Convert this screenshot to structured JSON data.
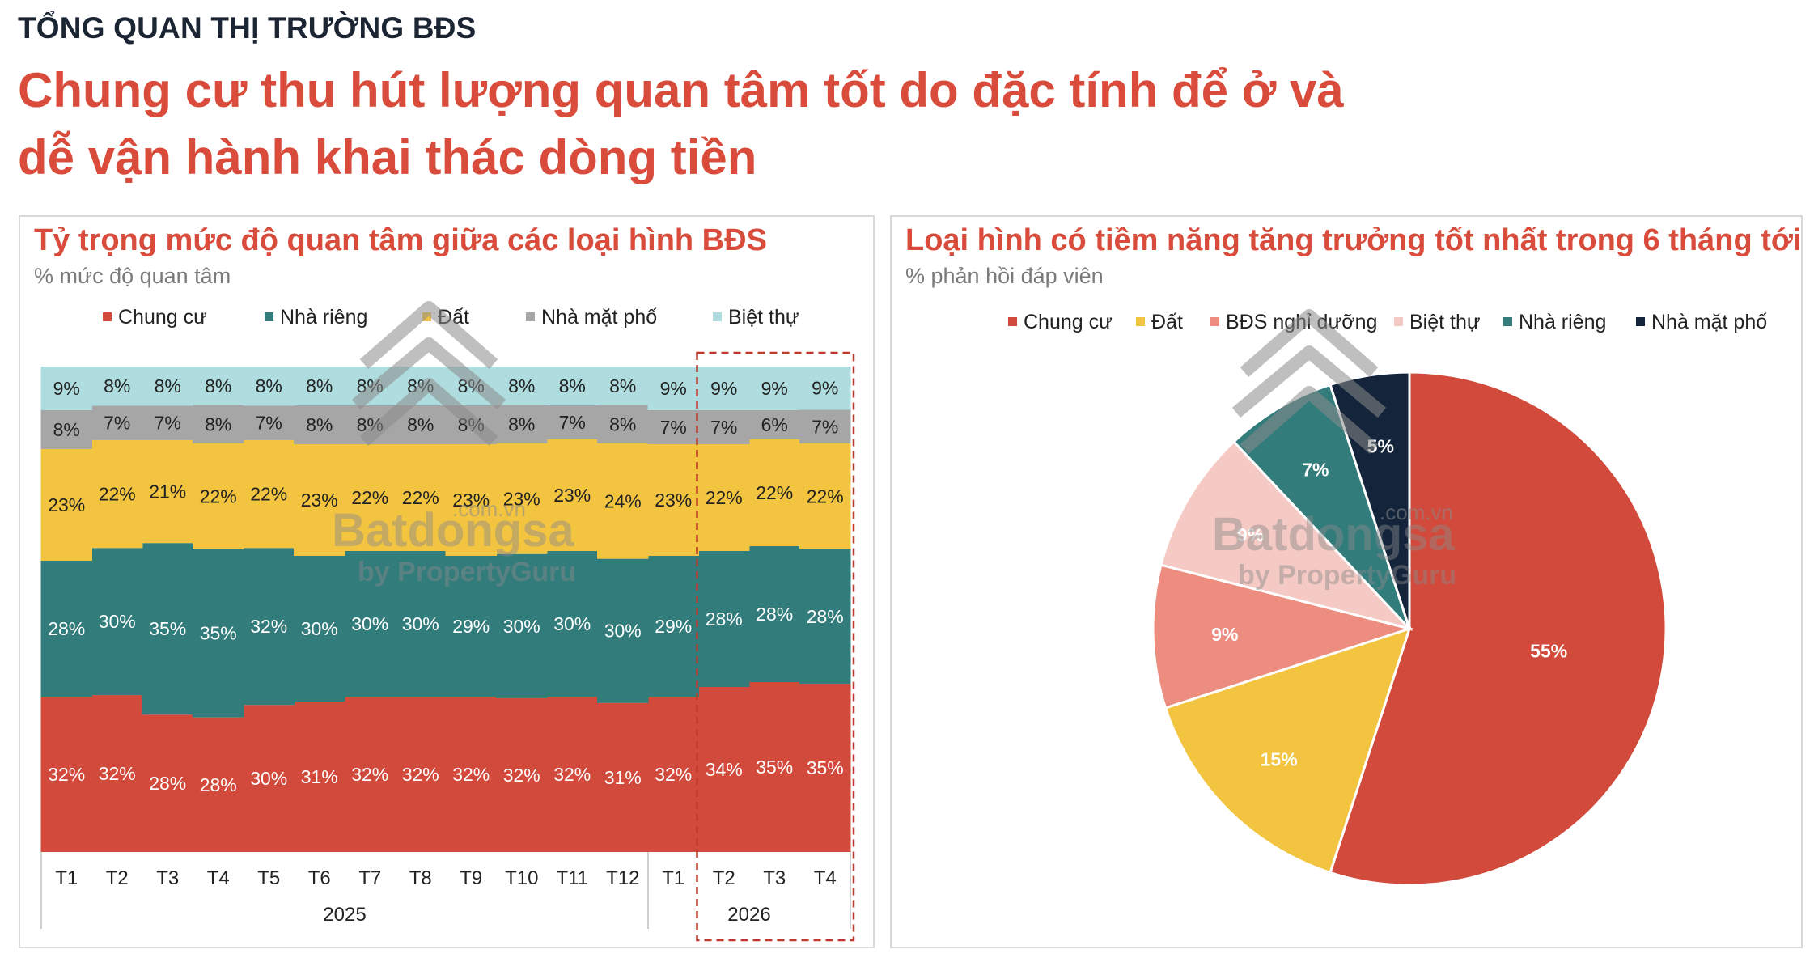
{
  "header": {
    "kicker": "TỔNG QUAN THỊ TRƯỜNG BĐS",
    "headline_line1": "Chung cư thu hút lượng quan tâm tốt do đặc tính để ở và",
    "headline_line2": "dễ vận hành khai thác dòng tiền"
  },
  "colors": {
    "accent_red": "#d94b3a",
    "chung_cu": "#d14a3b",
    "nha_rieng": "#337c7c",
    "dat": "#f2c440",
    "nha_mat_pho": "#a6a6a6",
    "biet_thu": "#afdcdf",
    "bds_nghi_duong": "#ec8d80",
    "biet_thu_pie": "#f5c9c4",
    "nha_mat_pho_pie": "#13243b"
  },
  "chart_data": [
    {
      "type": "bar",
      "stacked": true,
      "normalized": true,
      "title": "Tỷ trọng mức độ quan tâm giữa các loại hình BĐS",
      "subtitle": "% mức độ quan tâm",
      "categories": [
        "T1",
        "T2",
        "T3",
        "T4",
        "T5",
        "T6",
        "T7",
        "T8",
        "T9",
        "T10",
        "T11",
        "T12",
        "T1",
        "T2",
        "T3",
        "T4"
      ],
      "groups": [
        {
          "label": "2025",
          "count": 12
        },
        {
          "label": "2026",
          "count": 4
        }
      ],
      "highlight": "T2–T4 2026",
      "series": [
        {
          "name": "Chung cư",
          "color": "#d14a3b",
          "values": [
            32,
            32,
            28,
            28,
            30,
            31,
            32,
            32,
            32,
            32,
            32,
            31,
            32,
            34,
            35,
            35
          ]
        },
        {
          "name": "Nhà riêng",
          "color": "#337c7c",
          "values": [
            28,
            30,
            35,
            35,
            32,
            30,
            30,
            30,
            29,
            30,
            30,
            30,
            29,
            28,
            28,
            28
          ]
        },
        {
          "name": "Đất",
          "color": "#f2c440",
          "values": [
            23,
            22,
            21,
            22,
            22,
            23,
            22,
            22,
            23,
            23,
            23,
            24,
            23,
            22,
            22,
            22
          ]
        },
        {
          "name": "Nhà mặt phố",
          "color": "#a6a6a6",
          "values": [
            8,
            7,
            7,
            8,
            7,
            8,
            8,
            8,
            8,
            8,
            7,
            8,
            7,
            7,
            6,
            7
          ]
        },
        {
          "name": "Biệt thự",
          "color": "#afdcdf",
          "values": [
            9,
            8,
            8,
            8,
            8,
            8,
            8,
            8,
            8,
            8,
            8,
            8,
            9,
            9,
            9,
            9
          ]
        }
      ],
      "legend": "top"
    },
    {
      "type": "pie",
      "title": "Loại hình có tiềm năng tăng trưởng tốt nhất trong 6 tháng tới",
      "subtitle": "% phản hồi đáp viên",
      "slices": [
        {
          "name": "Chung cư",
          "value": 55,
          "label": "55%",
          "color": "#d14a3b"
        },
        {
          "name": "Đất",
          "value": 15,
          "label": "15%",
          "color": "#f2c440"
        },
        {
          "name": "BĐS nghỉ dưỡng",
          "value": 9,
          "label": "9%",
          "color": "#ec8d80"
        },
        {
          "name": "Biệt thự",
          "value": 9,
          "label": "9%",
          "color": "#f5c9c4"
        },
        {
          "name": "Nhà riêng",
          "value": 7,
          "label": "7%",
          "color": "#337c7c"
        },
        {
          "name": "Nhà mặt phố",
          "value": 5,
          "label": "5%",
          "color": "#13243b"
        }
      ],
      "legend": "top"
    }
  ],
  "watermark": {
    "line1": "Batdongsan",
    "line2": ".com.vn",
    "line3": "by PropertyGuru"
  }
}
